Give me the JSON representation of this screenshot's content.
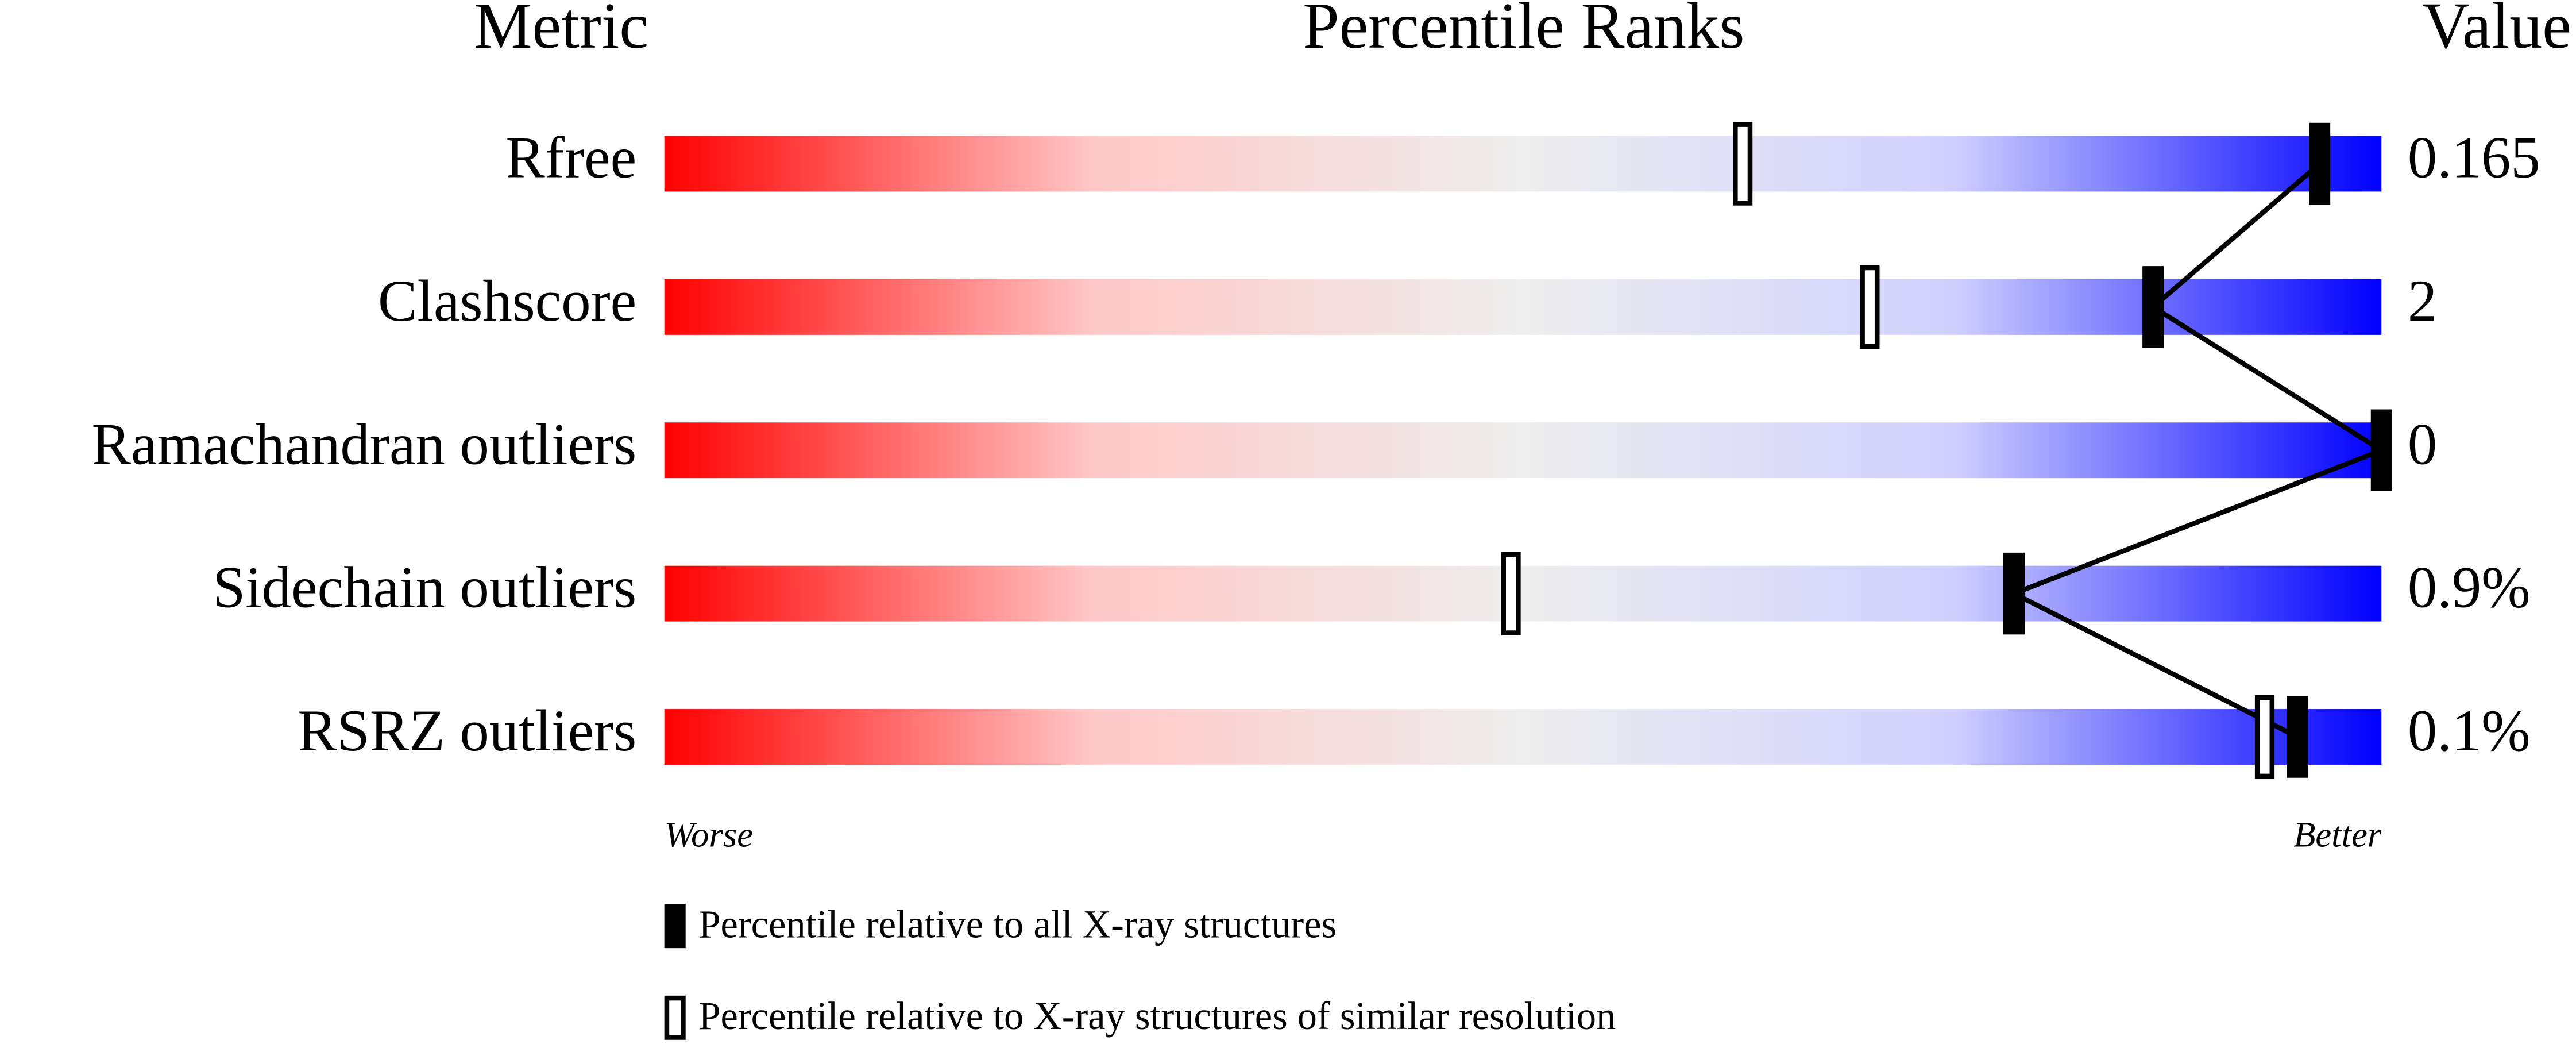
{
  "chart_data": {
    "type": "percentile",
    "headers": [
      "Metric",
      "Percentile Ranks",
      "Value"
    ],
    "categories": [
      "Rfree",
      "Clashscore",
      "Ramachandran outliers",
      "Sidechain outliers",
      "RSRZ outliers"
    ],
    "value_texts": [
      "0.165",
      "2",
      "0",
      "0.9%",
      "0.1%"
    ],
    "xlim": [
      0,
      100
    ],
    "worse_label": "Worse",
    "better_label": "Better",
    "series": [
      {
        "name": "Percentile relative to all X-ray structures",
        "color": "#000000",
        "values": [
          96.4,
          86.7,
          100,
          78.6,
          95.1
        ]
      },
      {
        "name": "Percentile relative to X-ray structures of similar resolution",
        "color": "#000000",
        "values": [
          62.8,
          70.2,
          null,
          49.3,
          93.2
        ]
      }
    ]
  }
}
